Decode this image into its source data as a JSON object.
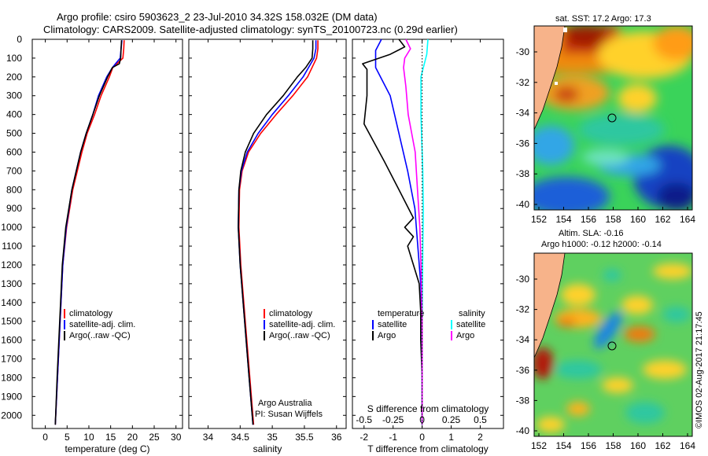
{
  "title": {
    "line1": "Argo profile: csiro 5903623_2 23-Jul-2010 34.32S 158.032E (DM data)",
    "line2": "Climatology: CARS2009. Satellite-adjusted climatology: synTS_20100723.nc (0.29d earlier)"
  },
  "colors": {
    "climatology": "#ff0000",
    "satellite": "#0000ff",
    "argo": "#000000",
    "sal_sat": "#00ffff",
    "sal_argo": "#ff00ff",
    "land": "#f7b38a"
  },
  "chart_data": [
    {
      "type": "line",
      "name": "temperature",
      "xlabel": "temperature (deg C)",
      "xlim": [
        -3,
        31.5
      ],
      "xticks": [
        0,
        5,
        10,
        15,
        20,
        25,
        30
      ],
      "ylim": [
        2070,
        0
      ],
      "yticks": [
        0,
        100,
        200,
        300,
        400,
        500,
        600,
        700,
        800,
        900,
        1000,
        1100,
        1200,
        1300,
        1400,
        1500,
        1600,
        1700,
        1800,
        1900,
        2000
      ],
      "legend": [
        "climatology",
        "satellite-adj. clim.",
        "Argo(..raw -QC)"
      ],
      "series": [
        {
          "name": "climatology",
          "depth": [
            5,
            50,
            100,
            150,
            200,
            300,
            400,
            500,
            600,
            800,
            1000,
            1200,
            1500,
            1800,
            2050
          ],
          "values": [
            18.1,
            18.0,
            17.8,
            15.5,
            14.7,
            12.8,
            11.3,
            9.6,
            8.4,
            6.3,
            4.9,
            4.0,
            3.4,
            2.8,
            2.3
          ]
        },
        {
          "name": "satellite-adj. clim.",
          "depth": [
            5,
            50,
            100,
            150,
            200,
            300,
            400,
            500,
            600,
            800,
            1000,
            1200,
            1500,
            1800,
            2050
          ],
          "values": [
            17.6,
            17.4,
            17.2,
            15.4,
            14.1,
            12.2,
            10.9,
            9.4,
            8.1,
            6.1,
            4.8,
            4.0,
            3.4,
            2.8,
            2.3
          ]
        },
        {
          "name": "Argo(..raw -QC)",
          "depth": [
            5,
            50,
            100,
            130,
            150,
            200,
            300,
            400,
            500,
            600,
            800,
            1000,
            1200,
            1500,
            1800,
            2050
          ],
          "values": [
            17.5,
            17.4,
            17.3,
            17.0,
            15.4,
            14.3,
            12.4,
            10.9,
            9.4,
            8.1,
            6.1,
            4.7,
            3.9,
            3.3,
            2.7,
            2.3
          ]
        }
      ]
    },
    {
      "type": "line",
      "name": "salinity",
      "xlabel": "salinity",
      "xlim": [
        33.7,
        36.15
      ],
      "xticks": [
        34,
        34.5,
        35,
        35.5,
        36
      ],
      "ylim": [
        2070,
        0
      ],
      "legend": [
        "climatology",
        "satellite-adj. clim.",
        "Argo(..raw -QC)"
      ],
      "annotation": [
        "Argo Australia",
        "PI: Susan Wijffels"
      ],
      "series": [
        {
          "name": "climatology",
          "depth": [
            5,
            50,
            100,
            200,
            300,
            400,
            500,
            600,
            700,
            800,
            1000,
            1200,
            1500,
            1800,
            2050
          ],
          "values": [
            35.71,
            35.71,
            35.69,
            35.55,
            35.32,
            35.06,
            34.82,
            34.63,
            34.53,
            34.49,
            34.48,
            34.51,
            34.58,
            34.65,
            34.71
          ]
        },
        {
          "name": "satellite-adj. clim.",
          "depth": [
            5,
            50,
            100,
            200,
            300,
            400,
            500,
            600,
            700,
            800,
            1000,
            1200,
            1500,
            1800,
            2050
          ],
          "values": [
            35.68,
            35.68,
            35.65,
            35.48,
            35.25,
            35.0,
            34.78,
            34.61,
            34.52,
            34.48,
            34.47,
            34.5,
            34.57,
            34.64,
            34.7
          ]
        },
        {
          "name": "Argo(..raw -QC)",
          "depth": [
            5,
            50,
            100,
            150,
            200,
            300,
            400,
            500,
            600,
            700,
            800,
            1000,
            1200,
            1500,
            1800,
            2050
          ],
          "values": [
            35.63,
            35.63,
            35.62,
            35.52,
            35.39,
            35.17,
            34.91,
            34.71,
            34.58,
            34.51,
            34.48,
            34.47,
            34.5,
            34.57,
            34.64,
            34.7
          ]
        }
      ]
    },
    {
      "type": "line",
      "name": "differences",
      "xlabel": "T difference from climatology",
      "xlabel2": "S difference from climatology",
      "xlim": [
        -2.4,
        2.8
      ],
      "xticks": [
        -2,
        -1,
        0,
        1,
        2
      ],
      "xticks_s": [
        -0.5,
        -0.25,
        0,
        0.25,
        0.5
      ],
      "xlim_s": [
        -0.6,
        0.7
      ],
      "ylim": [
        2070,
        0
      ],
      "legend_headers": [
        "temperature",
        "salinity"
      ],
      "legend": [
        [
          "satellite",
          "Argo"
        ],
        [
          "satellite",
          "Argo"
        ]
      ],
      "series": [
        {
          "name": "T satellite",
          "depth": [
            0,
            60,
            150,
            300,
            500,
            700,
            900,
            1100,
            1300,
            1500,
            2050
          ],
          "values": [
            -1.4,
            -1.6,
            -1.6,
            -1.1,
            -0.8,
            -0.5,
            -0.25,
            -0.15,
            -0.05,
            0,
            0
          ]
        },
        {
          "name": "T Argo",
          "depth": [
            0,
            40,
            80,
            130,
            160,
            300,
            450,
            650,
            800,
            950,
            1000,
            1050,
            1100,
            1300,
            1450,
            1600,
            1800,
            2050
          ],
          "values": [
            -0.8,
            -0.6,
            -1.1,
            -2.05,
            -1.9,
            -1.9,
            -2.0,
            -1.3,
            -0.8,
            -0.3,
            -0.6,
            -0.3,
            -0.5,
            -0.1,
            -0.05,
            -0.05,
            0,
            0
          ]
        },
        {
          "name": "S satellite",
          "depth": [
            0,
            80,
            200,
            400,
            700,
            900,
            1300,
            1600,
            2050
          ],
          "values": [
            0.05,
            0.04,
            -0.01,
            -0.01,
            0.005,
            0.01,
            0.002,
            0,
            0
          ]
        },
        {
          "name": "S Argo",
          "depth": [
            0,
            50,
            100,
            150,
            250,
            400,
            600,
            800,
            1000,
            1200,
            1500,
            2050
          ],
          "values": [
            -0.14,
            -0.1,
            -0.15,
            -0.16,
            -0.14,
            -0.12,
            -0.06,
            -0.04,
            -0.02,
            -0.01,
            0,
            0
          ]
        }
      ]
    }
  ],
  "maps": [
    {
      "name": "sst",
      "title": "sat. SST: 17.2  Argo: 17.3",
      "xticks": [
        "152",
        "154",
        "156",
        "158",
        "160",
        "162",
        "164"
      ],
      "yticks": [
        "-30",
        "-32",
        "-34",
        "-36",
        "-38",
        "-40"
      ]
    },
    {
      "name": "sla",
      "title1": "Altim. SLA: -0.16",
      "title2": "Argo h1000: -0.12  h2000: -0.14",
      "xticks": [
        "152",
        "154",
        "156",
        "158",
        "160",
        "162",
        "164"
      ],
      "yticks": [
        "-30",
        "-32",
        "-34",
        "-36",
        "-38",
        "-40"
      ]
    }
  ],
  "stamp": "©IMOS 02-Aug-2017 21:17:45"
}
